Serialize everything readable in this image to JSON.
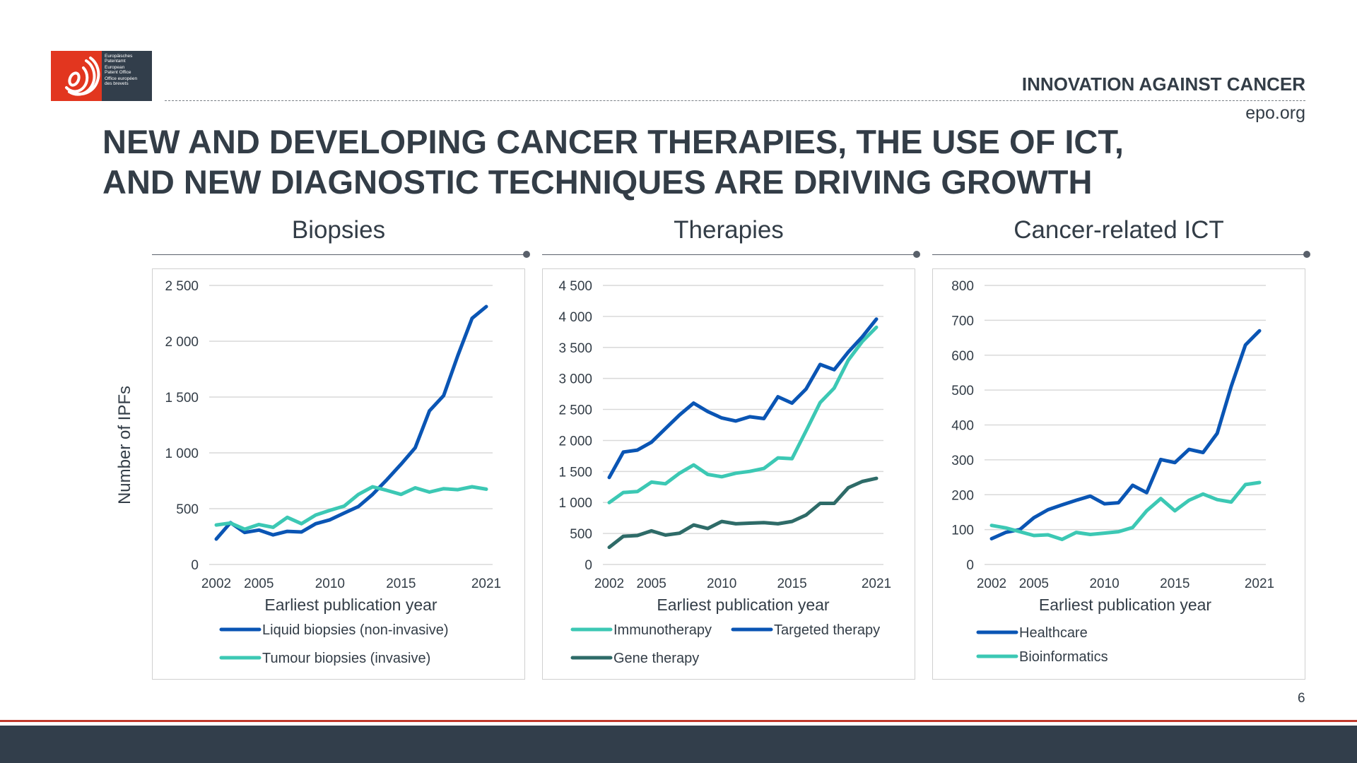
{
  "logo": {
    "lines": [
      "Europäisches",
      "Patentamt",
      "European",
      "Patent Office",
      "Office européen",
      "des brevets"
    ]
  },
  "header": {
    "tag": "INNOVATION AGAINST CANCER",
    "site": "epo.org"
  },
  "title": {
    "line1": "NEW AND DEVELOPING CANCER THERAPIES, THE USE OF ICT,",
    "line2": "AND NEW DIAGNOSTIC TECHNIQUES ARE DRIVING GROWTH"
  },
  "page_number": "6",
  "colors": {
    "dark_blue": "#0a55b4",
    "teal": "#3cc8b4",
    "dark_teal": "#2e6b68",
    "brand_red": "#e2361f",
    "brand_dark": "#323e4b"
  },
  "chart_data": [
    {
      "type": "line",
      "title": "Biopsies",
      "xlabel": "Earliest publication year",
      "ylabel": "Number of IPFs",
      "ylim": [
        0,
        2500
      ],
      "yticks": [
        0,
        500,
        1000,
        1500,
        2000,
        2500
      ],
      "ytick_labels": [
        "0",
        "500",
        "1 000",
        "1 500",
        "2 000",
        "2 500"
      ],
      "xtick_labels": [
        "2002",
        "2005",
        "2010",
        "2015",
        "2021"
      ],
      "grid": true,
      "legend": "bottom",
      "x": [
        2002,
        2003,
        2004,
        2005,
        2006,
        2007,
        2008,
        2009,
        2010,
        2011,
        2012,
        2013,
        2014,
        2015,
        2016,
        2017,
        2018,
        2019,
        2020,
        2021
      ],
      "series": [
        {
          "name": "Liquid biopsies (non-invasive)",
          "color": "#0a55b4",
          "values": [
            228,
            375,
            287,
            308,
            265,
            297,
            291,
            365,
            400,
            460,
            519,
            628,
            759,
            898,
            1046,
            1376,
            1513,
            1872,
            2205,
            2310
          ]
        },
        {
          "name": "Tumour biopsies (invasive)",
          "color": "#3cc8b4",
          "values": [
            354,
            371,
            316,
            358,
            333,
            422,
            365,
            443,
            485,
            523,
            628,
            696,
            664,
            628,
            687,
            649,
            679,
            670,
            696,
            675
          ]
        }
      ]
    },
    {
      "type": "line",
      "title": "Therapies",
      "xlabel": "Earliest publication year",
      "ylim": [
        0,
        4500
      ],
      "yticks": [
        0,
        500,
        1000,
        1500,
        2000,
        2500,
        3000,
        3500,
        4000,
        4500
      ],
      "ytick_labels": [
        "0",
        "500",
        "1 000",
        "1 500",
        "2 000",
        "2 500",
        "3 000",
        "3 500",
        "4 000",
        "4 500"
      ],
      "xtick_labels": [
        "2002",
        "2005",
        "2010",
        "2015",
        "2021"
      ],
      "grid": true,
      "legend": "bottom",
      "x": [
        2002,
        2003,
        2004,
        2005,
        2006,
        2007,
        2008,
        2009,
        2010,
        2011,
        2012,
        2013,
        2014,
        2015,
        2016,
        2017,
        2018,
        2019,
        2020,
        2021
      ],
      "series": [
        {
          "name": "Immunotherapy",
          "color": "#3cc8b4",
          "values": [
            998,
            1161,
            1176,
            1328,
            1301,
            1472,
            1605,
            1453,
            1415,
            1472,
            1502,
            1548,
            1719,
            1707,
            2154,
            2610,
            2845,
            3293,
            3596,
            3824
          ]
        },
        {
          "name": "Targeted therapy",
          "color": "#0a55b4",
          "values": [
            1404,
            1813,
            1844,
            1972,
            2192,
            2412,
            2602,
            2466,
            2363,
            2314,
            2382,
            2352,
            2705,
            2602,
            2830,
            3225,
            3141,
            3426,
            3672,
            3957
          ]
        },
        {
          "name": "Gene therapy",
          "color": "#2e6b68",
          "values": [
            277,
            455,
            467,
            542,
            474,
            505,
            637,
            580,
            694,
            656,
            667,
            675,
            656,
            694,
            797,
            986,
            986,
            1237,
            1339,
            1389
          ]
        }
      ]
    },
    {
      "type": "line",
      "title": "Cancer-related ICT",
      "xlabel": "Earliest publication year",
      "ylim": [
        0,
        800
      ],
      "yticks": [
        0,
        100,
        200,
        300,
        400,
        500,
        600,
        700,
        800
      ],
      "ytick_labels": [
        "0",
        "100",
        "200",
        "300",
        "400",
        "500",
        "600",
        "700",
        "800"
      ],
      "xtick_labels": [
        "2002",
        "2005",
        "2010",
        "2015",
        "2021"
      ],
      "grid": true,
      "legend": "bottom",
      "x": [
        2002,
        2003,
        2004,
        2005,
        2006,
        2007,
        2008,
        2009,
        2010,
        2011,
        2012,
        2013,
        2014,
        2015,
        2016,
        2017,
        2018,
        2019,
        2020,
        2021
      ],
      "series": [
        {
          "name": "Healthcare",
          "color": "#0a55b4",
          "values": [
            74,
            92,
            100,
            134,
            157,
            171,
            184,
            196,
            174,
            177,
            227,
            206,
            301,
            292,
            330,
            321,
            376,
            511,
            629,
            670
          ]
        },
        {
          "name": "Bioinformatics",
          "color": "#3cc8b4",
          "values": [
            112,
            105,
            94,
            83,
            85,
            72,
            92,
            86,
            90,
            94,
            106,
            154,
            189,
            154,
            184,
            202,
            186,
            179,
            229,
            235
          ]
        }
      ]
    }
  ]
}
